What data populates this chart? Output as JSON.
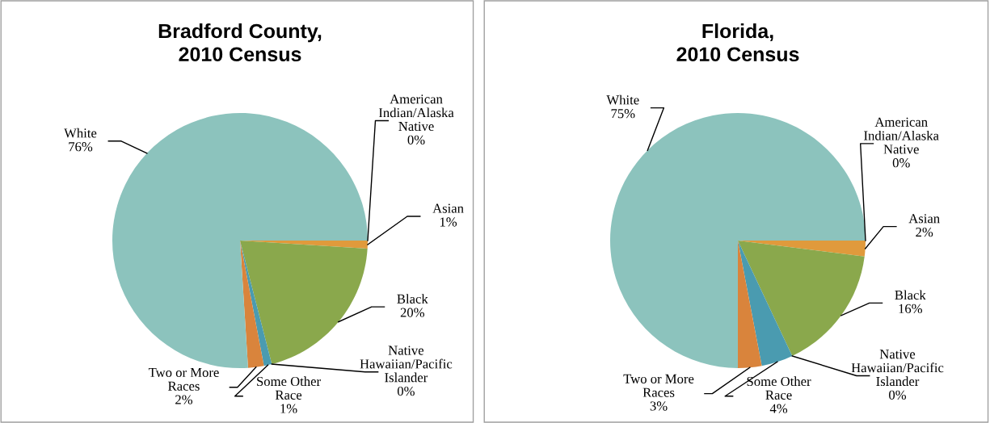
{
  "chart_data": [
    {
      "type": "pie",
      "title": "Bradford County,\n2010 Census",
      "categories": [
        "American Indian/Alaska Native",
        "Asian",
        "Black",
        "Native Hawaiian/Pacific Islander",
        "Some Other Race",
        "Two or More Races",
        "White"
      ],
      "values": [
        0,
        1,
        20,
        0,
        1,
        2,
        76
      ],
      "value_labels": [
        "0%",
        "1%",
        "20%",
        "0%",
        "1%",
        "2%",
        "76%"
      ],
      "colors": [
        "#2e9a8a",
        "#e09a3c",
        "#8aa84c",
        "#7f6fa8",
        "#4a9bb0",
        "#d9843c",
        "#8cc3bd"
      ]
    },
    {
      "type": "pie",
      "title": "Florida,\n2010 Census",
      "categories": [
        "American Indian/Alaska Native",
        "Asian",
        "Black",
        "Native Hawaiian/Pacific Islander",
        "Some Other Race",
        "Two or More Races",
        "White"
      ],
      "values": [
        0,
        2,
        16,
        0,
        4,
        3,
        75
      ],
      "value_labels": [
        "0%",
        "2%",
        "16%",
        "0%",
        "4%",
        "3%",
        "75%"
      ],
      "colors": [
        "#2e9a8a",
        "#e09a3c",
        "#8aa84c",
        "#7f6fa8",
        "#4a9bb0",
        "#d9843c",
        "#8cc3bd"
      ]
    }
  ]
}
